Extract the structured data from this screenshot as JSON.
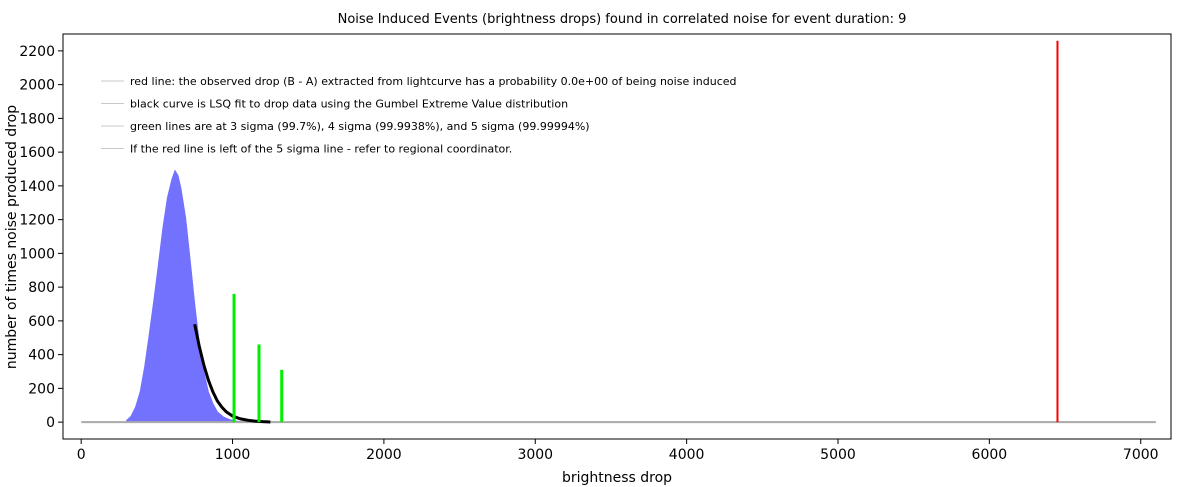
{
  "chart_data": {
    "type": "bar",
    "title": "Noise Induced Events (brightness drops) found in correlated noise for event duration: 9",
    "xlabel": "brightness drop",
    "ylabel": "number of times noise produced drop",
    "xlim": [
      -120,
      7200
    ],
    "ylim": [
      -100,
      2300
    ],
    "xticks": [
      0,
      1000,
      2000,
      3000,
      4000,
      5000,
      6000,
      7000
    ],
    "yticks": [
      0,
      200,
      400,
      600,
      800,
      1000,
      1200,
      1400,
      1600,
      1800,
      2000,
      2200
    ],
    "grid": false,
    "legend_position": "top-left",
    "legend": [
      "red line: the observed drop (B - A) extracted from lightcurve has a probability 0.0e+00 of being noise induced",
      "black curve is LSQ fit to drop data using the Gumbel Extreme Value distribution",
      "green lines are at 3 sigma (99.7%), 4 sigma (99.9938%), and 5 sigma (99.99994%)",
      "If the red line is left of the 5 sigma line - refer to regional coordinator."
    ],
    "histogram": {
      "color": "#6b6bff",
      "x": [
        300,
        330,
        360,
        390,
        420,
        450,
        480,
        510,
        540,
        570,
        600,
        620,
        640,
        660,
        690,
        720,
        750,
        780,
        810,
        840,
        870,
        900,
        940,
        980,
        1020,
        1080
      ],
      "y": [
        10,
        35,
        90,
        180,
        330,
        520,
        720,
        930,
        1150,
        1330,
        1440,
        1490,
        1460,
        1380,
        1210,
        960,
        700,
        470,
        300,
        180,
        110,
        60,
        30,
        15,
        6,
        2
      ]
    },
    "gumbel_fit": {
      "color": "#000000",
      "x": [
        750,
        780,
        810,
        840,
        870,
        900,
        930,
        960,
        1000,
        1050,
        1100,
        1150,
        1200,
        1250
      ],
      "y": [
        580,
        450,
        340,
        250,
        180,
        125,
        88,
        60,
        36,
        20,
        11,
        6,
        3,
        1
      ]
    },
    "baseline": {
      "color": "#aaaaaa",
      "x": [
        0,
        7100
      ],
      "y": 0
    },
    "sigma_lines": {
      "color": "#00ee00",
      "lines": [
        {
          "x": 1010,
          "height": 760
        },
        {
          "x": 1175,
          "height": 460
        },
        {
          "x": 1325,
          "height": 310
        }
      ]
    },
    "observed_drop": {
      "color": "#ff0000",
      "x": 6450,
      "height": 2260
    }
  }
}
